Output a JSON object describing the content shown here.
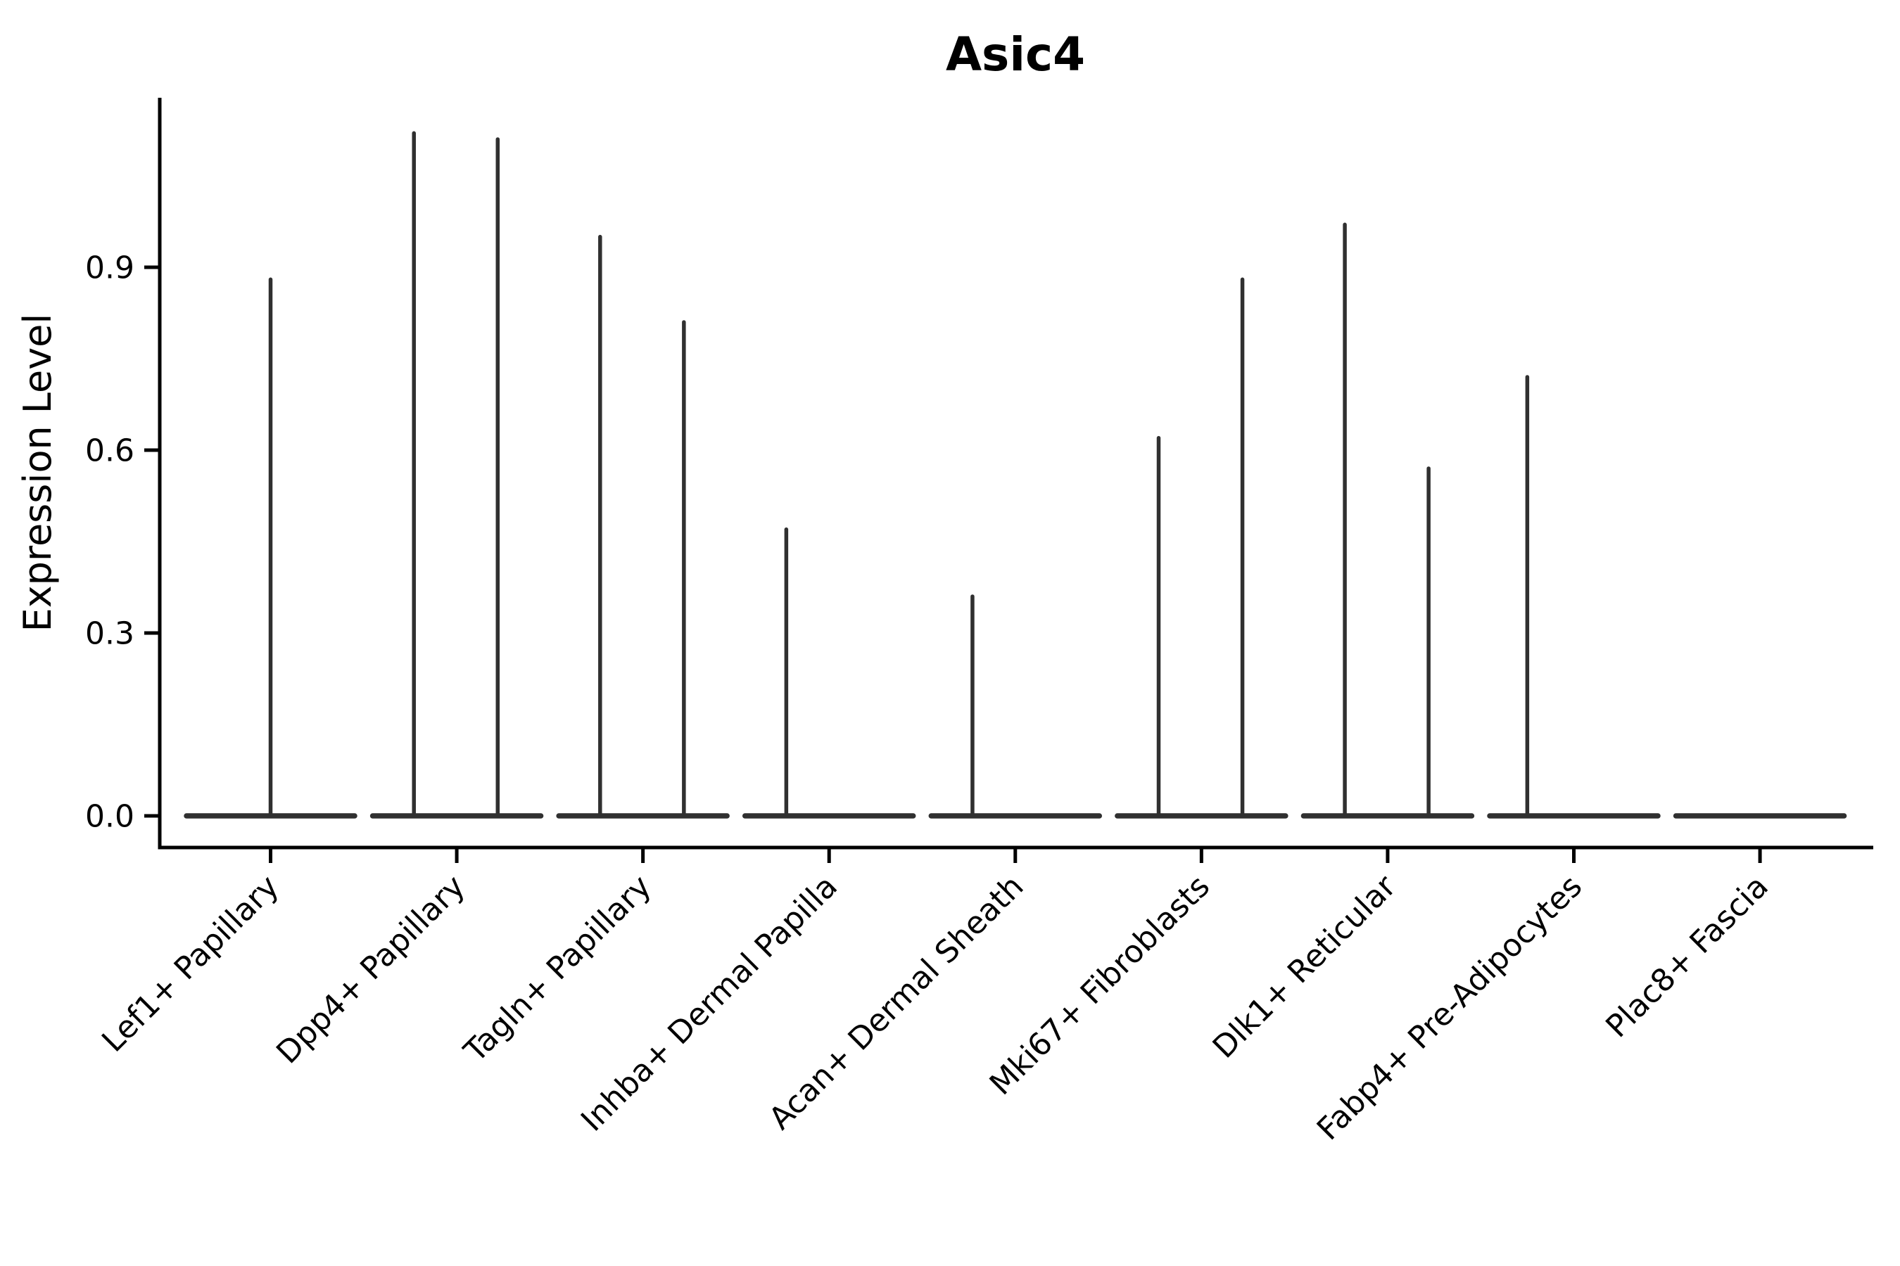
{
  "chart_data": {
    "type": "violin",
    "title": "Asic4",
    "ylabel": "Expression Level",
    "xlabel": "",
    "yticks": [
      0.0,
      0.3,
      0.6,
      0.9
    ],
    "yticklabels": [
      "0.0",
      "0.3",
      "0.6",
      "0.9"
    ],
    "ylim": [
      -0.05,
      1.18
    ],
    "grid": false,
    "legend": "none",
    "violin_style": "mostly-zero expression; wide flat base at 0 with thin vertical density spikes to max",
    "base_width_units": 0.9,
    "categories": [
      "Lef1+ Papillary",
      "Dpp4+ Papillary",
      "Tagln+ Papillary",
      "Inhba+ Dermal Papilla",
      "Acan+ Dermal Sheath",
      "Mki67+ Fibroblasts",
      "Dlk1+ Reticular",
      "Fabp4+ Pre-Adipocytes",
      "Plac8+ Fascia"
    ],
    "series": [
      {
        "category": "Lef1+ Papillary",
        "violins": [
          {
            "offset": 0.0,
            "max": 0.88
          }
        ]
      },
      {
        "category": "Dpp4+ Papillary",
        "violins": [
          {
            "offset": -0.23,
            "max": 1.12
          },
          {
            "offset": 0.22,
            "max": 1.11
          }
        ]
      },
      {
        "category": "Tagln+ Papillary",
        "violins": [
          {
            "offset": -0.23,
            "max": 0.95
          },
          {
            "offset": 0.22,
            "max": 0.81
          }
        ]
      },
      {
        "category": "Inhba+ Dermal Papilla",
        "violins": [
          {
            "offset": -0.23,
            "max": 0.47
          }
        ]
      },
      {
        "category": "Acan+ Dermal Sheath",
        "violins": [
          {
            "offset": -0.23,
            "max": 0.36
          }
        ]
      },
      {
        "category": "Mki67+ Fibroblasts",
        "violins": [
          {
            "offset": -0.23,
            "max": 0.62
          },
          {
            "offset": 0.22,
            "max": 0.88
          }
        ]
      },
      {
        "category": "Dlk1+ Reticular",
        "violins": [
          {
            "offset": -0.23,
            "max": 0.97
          },
          {
            "offset": 0.22,
            "max": 0.57
          }
        ]
      },
      {
        "category": "Fabp4+ Pre-Adipocytes",
        "violins": [
          {
            "offset": -0.25,
            "max": 0.72
          }
        ]
      },
      {
        "category": "Plac8+ Fascia",
        "violins": []
      }
    ],
    "colors": {
      "violin": "#303030",
      "axis": "#000000",
      "text": "#000000",
      "background": "#ffffff"
    }
  }
}
